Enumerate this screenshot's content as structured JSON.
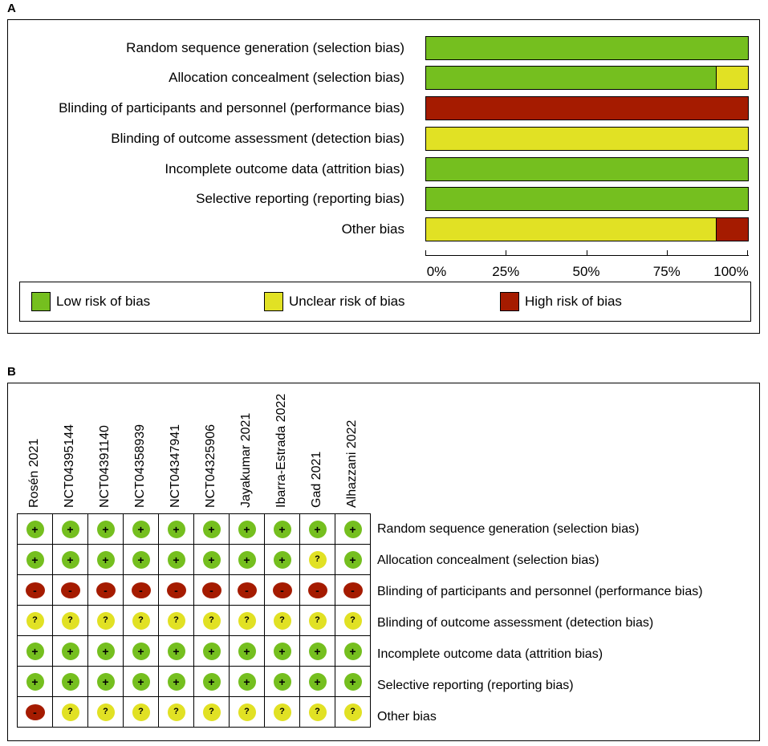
{
  "panel_a": {
    "letter": "A"
  },
  "panel_b": {
    "letter": "B"
  },
  "colors": {
    "low": "#75bf1f",
    "unclear": "#e1e124",
    "high": "#a51b00"
  },
  "chart_data": [
    {
      "type": "bar",
      "orientation": "horizontal-stacked-100",
      "title": "",
      "categories": [
        "Random sequence generation (selection bias)",
        "Allocation concealment (selection bias)",
        "Blinding of participants and personnel (performance bias)",
        "Blinding of outcome assessment (detection bias)",
        "Incomplete outcome data (attrition bias)",
        "Selective reporting (reporting bias)",
        "Other bias"
      ],
      "series": [
        {
          "name": "Low risk of bias",
          "key": "low",
          "values": [
            100,
            90,
            0,
            0,
            100,
            100,
            0
          ]
        },
        {
          "name": "Unclear risk of bias",
          "key": "unclear",
          "values": [
            0,
            10,
            0,
            100,
            0,
            0,
            90
          ]
        },
        {
          "name": "High risk of bias",
          "key": "high",
          "values": [
            0,
            0,
            100,
            0,
            0,
            0,
            10
          ]
        }
      ],
      "xticks": [
        "0%",
        "25%",
        "50%",
        "75%",
        "100%"
      ],
      "xlim": [
        0,
        100
      ],
      "legend": "bottom"
    },
    {
      "type": "table",
      "studies": [
        "Rosén 2021",
        "NCT04395144",
        "NCT04391140",
        "NCT04358939",
        "NCT04347941",
        "NCT04325906",
        "Jayakumar 2021",
        "Ibarra-Estrada 2022",
        "Gad 2021",
        "Alhazzani 2022"
      ],
      "domains": [
        "Random sequence generation (selection bias)",
        "Allocation concealment (selection bias)",
        "Blinding of participants and personnel (performance bias)",
        "Blinding of outcome assessment (detection bias)",
        "Incomplete outcome data (attrition bias)",
        "Selective reporting (reporting bias)",
        "Other bias"
      ],
      "judgements": [
        [
          "low",
          "low",
          "low",
          "low",
          "low",
          "low",
          "low",
          "low",
          "low",
          "low"
        ],
        [
          "low",
          "low",
          "low",
          "low",
          "low",
          "low",
          "low",
          "low",
          "unclear",
          "low"
        ],
        [
          "high",
          "high",
          "high",
          "high",
          "high",
          "high",
          "high",
          "high",
          "high",
          "high"
        ],
        [
          "unclear",
          "unclear",
          "unclear",
          "unclear",
          "unclear",
          "unclear",
          "unclear",
          "unclear",
          "unclear",
          "unclear"
        ],
        [
          "low",
          "low",
          "low",
          "low",
          "low",
          "low",
          "low",
          "low",
          "low",
          "low"
        ],
        [
          "low",
          "low",
          "low",
          "low",
          "low",
          "low",
          "low",
          "low",
          "low",
          "low"
        ],
        [
          "high",
          "unclear",
          "unclear",
          "unclear",
          "unclear",
          "unclear",
          "unclear",
          "unclear",
          "unclear",
          "unclear"
        ]
      ],
      "symbols": {
        "low": "+",
        "unclear": "?",
        "high": "-"
      }
    }
  ]
}
